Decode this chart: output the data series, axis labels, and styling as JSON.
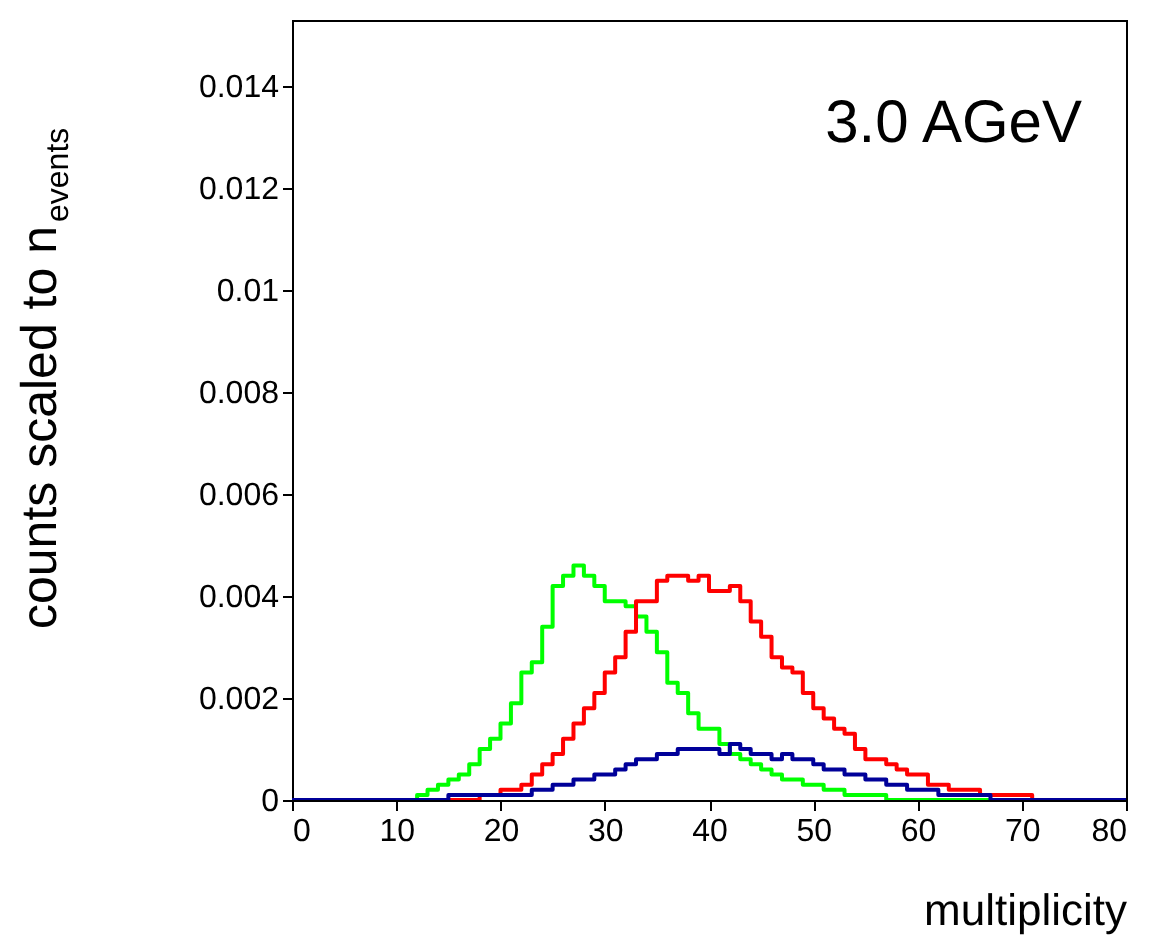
{
  "chart_data": {
    "type": "histogram",
    "xlabel": "multiplicity",
    "ylabel": "counts scaled to n$_{events}$",
    "annotations": [
      "3.0 AGeV"
    ],
    "bins": [
      0,
      1,
      2,
      3,
      4,
      5,
      6,
      7,
      8,
      9,
      10,
      11,
      12,
      13,
      14,
      15,
      16,
      17,
      18,
      19,
      20,
      21,
      22,
      23,
      24,
      25,
      26,
      27,
      28,
      29,
      30,
      31,
      32,
      33,
      34,
      35,
      36,
      37,
      38,
      39,
      40,
      41,
      42,
      43,
      44,
      45,
      46,
      47,
      48,
      49,
      50,
      51,
      52,
      53,
      54,
      55,
      56,
      57,
      58,
      59,
      60,
      61,
      62,
      63,
      64,
      65,
      66,
      67,
      68,
      69,
      70,
      71,
      72,
      73,
      74,
      75,
      76,
      77,
      78,
      79,
      80
    ],
    "series": [
      {
        "color": "#00ff00",
        "values": [
          0,
          0,
          0,
          0,
          0,
          0,
          0,
          0,
          0,
          0,
          0,
          0,
          0.0001,
          0.0002,
          0.0003,
          0.0004,
          0.0005,
          0.0007,
          0.001,
          0.0012,
          0.0015,
          0.0019,
          0.0025,
          0.0027,
          0.0034,
          0.0042,
          0.0044,
          0.0046,
          0.0044,
          0.0042,
          0.0039,
          0.0039,
          0.0038,
          0.0036,
          0.0033,
          0.0029,
          0.0023,
          0.0021,
          0.0017,
          0.0014,
          0.0014,
          0.0011,
          0.0009,
          0.0008,
          0.0007,
          0.0006,
          0.0005,
          0.0004,
          0.0004,
          0.0003,
          0.0003,
          0.0002,
          0.0002,
          0.0001,
          0.0001,
          0.0001,
          0.0001,
          0,
          0,
          0,
          0,
          0,
          0,
          0,
          0,
          0,
          0,
          0,
          0,
          0,
          0,
          0,
          0,
          0,
          0,
          0,
          0,
          0,
          0,
          0
        ]
      },
      {
        "color": "#ff0000",
        "values": [
          0,
          0,
          0,
          0,
          0,
          0,
          0,
          0,
          0,
          0,
          0,
          0,
          0,
          0,
          0,
          0,
          0,
          0,
          0.0001,
          0.0001,
          0.0002,
          0.0002,
          0.0003,
          0.0005,
          0.0007,
          0.0009,
          0.0012,
          0.0015,
          0.0018,
          0.0021,
          0.0025,
          0.0028,
          0.0033,
          0.0039,
          0.0039,
          0.0043,
          0.0044,
          0.0044,
          0.0043,
          0.0044,
          0.0041,
          0.0041,
          0.0042,
          0.0039,
          0.0035,
          0.0032,
          0.0028,
          0.0026,
          0.0025,
          0.0021,
          0.0018,
          0.0016,
          0.0014,
          0.0013,
          0.001,
          0.0008,
          0.0008,
          0.0007,
          0.0006,
          0.0005,
          0.0005,
          0.0003,
          0.0003,
          0.0002,
          0.0002,
          0.0002,
          0.0001,
          0.0001,
          0.0001,
          0.0001,
          0.0001,
          0,
          0,
          0,
          0,
          0,
          0,
          0,
          0,
          0
        ]
      },
      {
        "color": "#000099",
        "values": [
          0,
          0,
          0,
          0,
          0,
          0,
          0,
          0,
          0,
          0,
          0,
          0,
          0,
          0,
          0,
          0.0001,
          0.0001,
          0.0001,
          0.0001,
          0.0001,
          0.0001,
          0.0001,
          0.0001,
          0.0002,
          0.0002,
          0.0003,
          0.0003,
          0.0004,
          0.0004,
          0.0005,
          0.0005,
          0.0006,
          0.0007,
          0.0008,
          0.0008,
          0.0009,
          0.0009,
          0.001,
          0.001,
          0.001,
          0.001,
          0.0009,
          0.0011,
          0.001,
          0.0009,
          0.0009,
          0.0008,
          0.0009,
          0.0008,
          0.0008,
          0.0007,
          0.0006,
          0.0006,
          0.0005,
          0.0005,
          0.0004,
          0.0004,
          0.0003,
          0.0003,
          0.0002,
          0.0002,
          0.0002,
          0.0001,
          0.0001,
          0.0001,
          0.0001,
          0.0001,
          0,
          0,
          0,
          0,
          0,
          0,
          0,
          0,
          0,
          0,
          0,
          0,
          0
        ]
      }
    ],
    "xlim": [
      0,
      80
    ],
    "xticks": [
      0,
      10,
      20,
      30,
      40,
      50,
      60,
      70,
      80
    ],
    "ylim": [
      0,
      0.0153
    ],
    "yticks": [
      0,
      0.002,
      0.004,
      0.006,
      0.008,
      0.01,
      0.012,
      0.014
    ],
    "grid": false
  }
}
